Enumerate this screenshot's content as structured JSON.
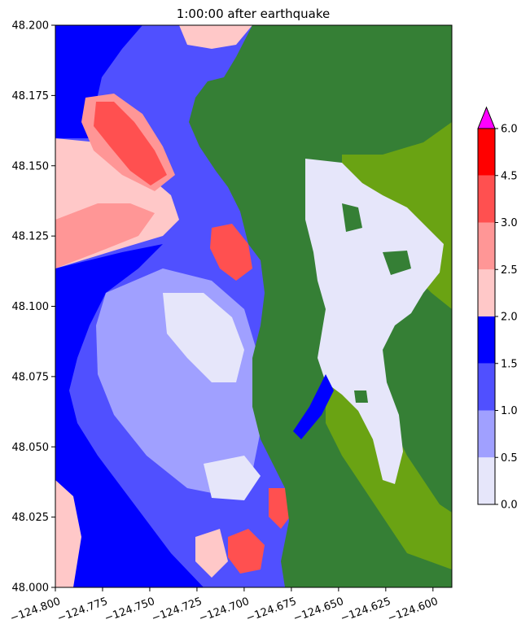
{
  "chart_data": {
    "type": "heatmap",
    "title": "1:00:00 after earthquake",
    "xlabel": "",
    "ylabel": "",
    "xlim": [
      -124.8,
      -124.59
    ],
    "ylim": [
      48.0,
      48.2
    ],
    "x_ticks": [
      -124.8,
      -124.775,
      -124.75,
      -124.725,
      -124.7,
      -124.675,
      -124.65,
      -124.625,
      -124.6
    ],
    "x_tick_labels": [
      "−124.800",
      "−124.775",
      "−124.750",
      "−124.725",
      "−124.700",
      "−124.675",
      "−124.650",
      "−124.625",
      "−124.600"
    ],
    "y_ticks": [
      48.0,
      48.025,
      48.05,
      48.075,
      48.1,
      48.125,
      48.15,
      48.175,
      48.2
    ],
    "y_tick_labels": [
      "48.000",
      "48.025",
      "48.050",
      "48.075",
      "48.100",
      "48.125",
      "48.150",
      "48.175",
      "48.200"
    ],
    "colorbar": {
      "levels": [
        0.0,
        0.5,
        1.0,
        1.5,
        2.0,
        2.5,
        3.0,
        4.5,
        6.0
      ],
      "tick_labels": [
        "0.0",
        "0.5",
        "1.0",
        "1.5",
        "2.0",
        "2.5",
        "3.0",
        "4.5",
        "6.0"
      ],
      "colors": [
        "#e6e6fa",
        "#a0a0ff",
        "#5050ff",
        "#0000ff",
        "#ffc8c8",
        "#ff9696",
        "#ff5050",
        "#ff0000"
      ],
      "extend_max_color": "#ff00ff"
    },
    "land_color": "#357f35",
    "land_high_color": "#6aa313",
    "dry_inland_color": "#e6e6fa"
  }
}
